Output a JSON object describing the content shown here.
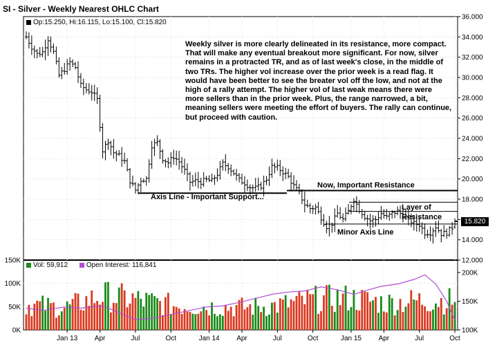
{
  "title": "SI - Silver - Weekly Nearest OHLC Chart",
  "ohlc_legend": {
    "open": "Op:15.250,",
    "high": "Hi:16.115,",
    "low": "Lo:15.100,",
    "close": "Cl:15.820"
  },
  "vol_legend": {
    "volume": "Vol: 59,912",
    "open_interest": "Open Interest: 116,841",
    "vol_color": "#1a8a1a",
    "oi_color": "#b24dd6"
  },
  "commentary": "Weekly silver is more clearly delineated in its resistance, more compact.  That will make any eventual breakout more significant. For now, silver remains in a protracted TR, and as of last week's close, in the middle of two TRs.  The higher vol increase over the prior week is a read flag.  It would have been better to see the breater vol off the low, and not at the high of a rally attempt.  The higher vol of last weak means there were more sellers than in the prior week.  Plus, the range narrowed, a bit, meaning sellers were meeting the effort of buyers.  The rally can continue, but proceed with caution.",
  "annotations": {
    "axis_line": "Axis Line - Important Support...",
    "important_resistance": "Now, Important Resistance",
    "layer_line1": "Layer of",
    "layer_line2": "Resistance",
    "minor_axis": "Minor Axis Line"
  },
  "last_price_label": "15.820",
  "chart_data": [
    {
      "type": "ohlc",
      "title": "SI - Silver - Weekly Nearest OHLC Chart",
      "x_ticks": [
        "Jan 13",
        "Apr",
        "Jul",
        "Oct",
        "Jan 14",
        "Apr",
        "Jul",
        "Oct",
        "Jan 15",
        "Apr",
        "Jul",
        "Oct"
      ],
      "ylim": [
        12,
        36
      ],
      "y_ticks": [
        "12.000",
        "14.000",
        "16.000",
        "18.000",
        "20.000",
        "22.000",
        "24.000",
        "26.000",
        "28.000",
        "30.000",
        "32.000",
        "34.000",
        "36.000"
      ],
      "close_path": [
        [
          "2012-10-01",
          34.0
        ],
        [
          "2012-10-15",
          33.0
        ],
        [
          "2012-10-29",
          32.3
        ],
        [
          "2012-11-12",
          32.5
        ],
        [
          "2012-11-26",
          33.8
        ],
        [
          "2012-12-10",
          32.5
        ],
        [
          "2012-12-24",
          30.2
        ],
        [
          "2013-01-07",
          30.8
        ],
        [
          "2013-01-21",
          31.5
        ],
        [
          "2013-02-04",
          31.0
        ],
        [
          "2013-02-18",
          29.2
        ],
        [
          "2013-03-04",
          28.8
        ],
        [
          "2013-03-18",
          28.6
        ],
        [
          "2013-04-01",
          27.8
        ],
        [
          "2013-04-15",
          22.8
        ],
        [
          "2013-04-29",
          23.8
        ],
        [
          "2013-05-13",
          22.6
        ],
        [
          "2013-05-27",
          22.3
        ],
        [
          "2013-06-10",
          21.7
        ],
        [
          "2013-06-24",
          19.8
        ],
        [
          "2013-07-08",
          18.9
        ],
        [
          "2013-07-22",
          19.9
        ],
        [
          "2013-08-05",
          20.0
        ],
        [
          "2013-08-19",
          23.3
        ],
        [
          "2013-09-02",
          23.6
        ],
        [
          "2013-09-16",
          22.0
        ],
        [
          "2013-09-30",
          21.6
        ],
        [
          "2013-10-14",
          22.2
        ],
        [
          "2013-10-28",
          21.7
        ],
        [
          "2013-11-11",
          20.8
        ],
        [
          "2013-11-25",
          19.7
        ],
        [
          "2013-12-09",
          19.8
        ],
        [
          "2013-12-23",
          19.7
        ],
        [
          "2014-01-06",
          19.9
        ],
        [
          "2014-01-20",
          19.8
        ],
        [
          "2014-02-03",
          20.5
        ],
        [
          "2014-02-17",
          21.5
        ],
        [
          "2014-03-03",
          21.2
        ],
        [
          "2014-03-17",
          20.6
        ],
        [
          "2014-03-31",
          19.9
        ],
        [
          "2014-04-14",
          19.6
        ],
        [
          "2014-04-28",
          19.2
        ],
        [
          "2014-05-12",
          19.1
        ],
        [
          "2014-05-26",
          19.3
        ],
        [
          "2014-06-09",
          20.0
        ],
        [
          "2014-06-23",
          21.2
        ],
        [
          "2014-07-07",
          21.1
        ],
        [
          "2014-07-21",
          20.7
        ],
        [
          "2014-08-04",
          20.2
        ],
        [
          "2014-08-18",
          19.3
        ],
        [
          "2014-09-01",
          18.6
        ],
        [
          "2014-09-15",
          17.5
        ],
        [
          "2014-09-29",
          17.1
        ],
        [
          "2014-10-13",
          17.2
        ],
        [
          "2014-10-27",
          16.2
        ],
        [
          "2014-11-10",
          15.3
        ],
        [
          "2014-11-24",
          15.6
        ],
        [
          "2014-12-08",
          16.6
        ],
        [
          "2014-12-22",
          16.0
        ],
        [
          "2015-01-05",
          16.8
        ],
        [
          "2015-01-19",
          18.0
        ],
        [
          "2015-02-02",
          17.0
        ],
        [
          "2015-02-16",
          16.3
        ],
        [
          "2015-03-02",
          15.9
        ],
        [
          "2015-03-16",
          16.0
        ],
        [
          "2015-03-30",
          16.6
        ],
        [
          "2015-04-13",
          16.2
        ],
        [
          "2015-04-27",
          16.6
        ],
        [
          "2015-05-11",
          16.8
        ],
        [
          "2015-05-25",
          16.4
        ],
        [
          "2015-06-08",
          16.0
        ],
        [
          "2015-06-22",
          15.6
        ],
        [
          "2015-07-06",
          15.5
        ],
        [
          "2015-07-20",
          14.7
        ],
        [
          "2015-08-03",
          14.7
        ],
        [
          "2015-08-17",
          15.3
        ],
        [
          "2015-08-31",
          14.6
        ],
        [
          "2015-09-14",
          14.7
        ],
        [
          "2015-09-28",
          15.2
        ],
        [
          "2015-10-05",
          15.82
        ]
      ],
      "volume_panel": {
        "ylim": [
          0,
          150000
        ],
        "y_ticks_left": [
          "0K",
          "50K",
          "100K",
          "150K"
        ],
        "y_ticks_right": [
          "100K",
          "150K",
          "200K"
        ],
        "volume_base_path": [
          [
            "2012-10-01",
            52000
          ],
          [
            "2013-01-07",
            45000
          ],
          [
            "2013-04-15",
            70000
          ],
          [
            "2013-07-08",
            62000
          ],
          [
            "2013-10-14",
            50000
          ],
          [
            "2014-01-06",
            48000
          ],
          [
            "2014-04-14",
            46000
          ],
          [
            "2014-07-07",
            50000
          ],
          [
            "2014-10-13",
            62000
          ],
          [
            "2015-01-05",
            65000
          ],
          [
            "2015-04-13",
            55000
          ],
          [
            "2015-07-06",
            60000
          ],
          [
            "2015-10-05",
            59912
          ]
        ],
        "open_interest_path": [
          [
            "2012-10-01",
            138000
          ],
          [
            "2012-11-12",
            134000
          ],
          [
            "2013-01-07",
            140000
          ],
          [
            "2013-02-18",
            138000
          ],
          [
            "2013-04-15",
            142000
          ],
          [
            "2013-05-27",
            130000
          ],
          [
            "2013-07-08",
            118000
          ],
          [
            "2013-08-19",
            120000
          ],
          [
            "2013-09-30",
            126000
          ],
          [
            "2013-11-11",
            132000
          ],
          [
            "2014-01-06",
            140000
          ],
          [
            "2014-02-17",
            142000
          ],
          [
            "2014-03-31",
            148000
          ],
          [
            "2014-05-12",
            155000
          ],
          [
            "2014-06-23",
            162000
          ],
          [
            "2014-08-04",
            166000
          ],
          [
            "2014-09-15",
            168000
          ],
          [
            "2014-10-27",
            175000
          ],
          [
            "2014-12-08",
            170000
          ],
          [
            "2015-01-19",
            162000
          ],
          [
            "2015-02-16",
            168000
          ],
          [
            "2015-03-30",
            176000
          ],
          [
            "2015-05-11",
            180000
          ],
          [
            "2015-06-22",
            188000
          ],
          [
            "2015-07-20",
            196000
          ],
          [
            "2015-08-17",
            180000
          ],
          [
            "2015-09-14",
            150000
          ],
          [
            "2015-10-05",
            116841
          ]
        ]
      }
    }
  ]
}
